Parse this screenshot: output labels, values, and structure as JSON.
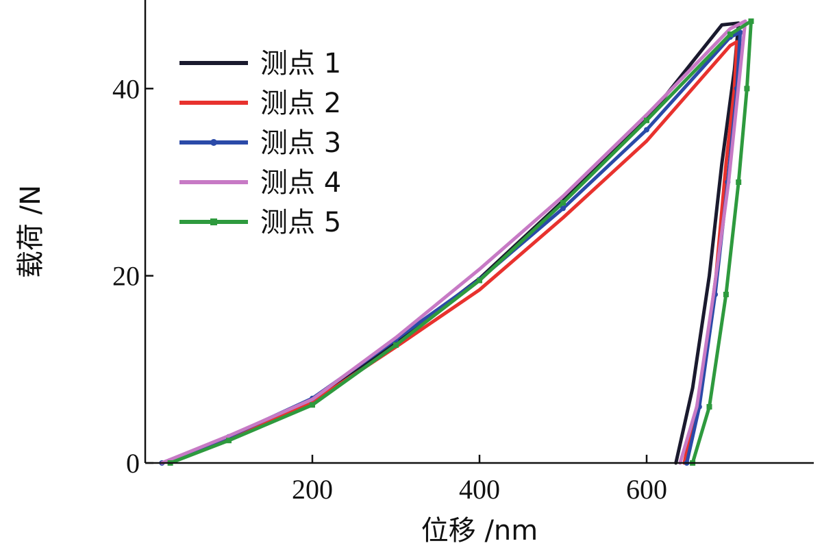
{
  "chart_data": {
    "type": "line",
    "title": "",
    "xlabel": "位移 /nm",
    "ylabel": "载荷 /N",
    "xlim": [
      0,
      800
    ],
    "ylim": [
      0,
      48
    ],
    "xticks": [
      200,
      400,
      600
    ],
    "yticks": [
      0,
      20,
      40
    ],
    "grid": false,
    "legend_position": "top-left",
    "series": [
      {
        "name": "测点 1",
        "color": "#1a1a2e",
        "marker": "none",
        "loading": [
          [
            20,
            0
          ],
          [
            100,
            2.6
          ],
          [
            200,
            6.6
          ],
          [
            300,
            12.9
          ],
          [
            400,
            19.7
          ],
          [
            500,
            28.0
          ],
          [
            600,
            36.7
          ],
          [
            690,
            46.8
          ],
          [
            710,
            47.0
          ]
        ],
        "unloading": [
          [
            710,
            47.0
          ],
          [
            705,
            42.0
          ],
          [
            690,
            32.0
          ],
          [
            675,
            20.0
          ],
          [
            655,
            8.0
          ],
          [
            635,
            0
          ]
        ]
      },
      {
        "name": "测点 2",
        "color": "#e8322e",
        "marker": "none",
        "loading": [
          [
            20,
            0
          ],
          [
            100,
            2.5
          ],
          [
            200,
            6.5
          ],
          [
            300,
            12.4
          ],
          [
            400,
            18.5
          ],
          [
            500,
            26.2
          ],
          [
            600,
            34.4
          ],
          [
            700,
            44.6
          ],
          [
            708,
            45.0
          ]
        ],
        "unloading": [
          [
            708,
            45.0
          ],
          [
            705,
            40.0
          ],
          [
            695,
            32.0
          ],
          [
            683,
            20.0
          ],
          [
            665,
            8.0
          ],
          [
            645,
            0
          ]
        ]
      },
      {
        "name": "测点 3",
        "color": "#2b4aa8",
        "marker": "dot",
        "loading": [
          [
            20,
            0
          ],
          [
            100,
            2.8
          ],
          [
            200,
            6.9
          ],
          [
            300,
            13.2
          ],
          [
            400,
            19.6
          ],
          [
            500,
            27.2
          ],
          [
            600,
            35.6
          ],
          [
            700,
            45.5
          ],
          [
            712,
            46.0
          ]
        ],
        "unloading": [
          [
            712,
            46.0
          ],
          [
            708,
            40.0
          ],
          [
            697,
            30.0
          ],
          [
            682,
            18.0
          ],
          [
            663,
            6.0
          ],
          [
            648,
            0
          ]
        ]
      },
      {
        "name": "测点 4",
        "color": "#c77ac5",
        "marker": "none",
        "loading": [
          [
            20,
            0
          ],
          [
            100,
            2.9
          ],
          [
            200,
            6.8
          ],
          [
            300,
            13.4
          ],
          [
            400,
            20.7
          ],
          [
            500,
            28.5
          ],
          [
            600,
            37.2
          ],
          [
            700,
            46.4
          ],
          [
            718,
            47.2
          ]
        ],
        "unloading": [
          [
            718,
            47.2
          ],
          [
            712,
            42.0
          ],
          [
            698,
            30.0
          ],
          [
            680,
            18.0
          ],
          [
            660,
            6.0
          ],
          [
            640,
            0
          ]
        ]
      },
      {
        "name": "测点 5",
        "color": "#2e9a3e",
        "marker": "square",
        "loading": [
          [
            30,
            0
          ],
          [
            100,
            2.4
          ],
          [
            200,
            6.2
          ],
          [
            300,
            12.6
          ],
          [
            400,
            19.5
          ],
          [
            500,
            27.8
          ],
          [
            600,
            36.6
          ],
          [
            700,
            45.8
          ],
          [
            725,
            47.2
          ]
        ],
        "unloading": [
          [
            725,
            47.2
          ],
          [
            720,
            40.0
          ],
          [
            710,
            30.0
          ],
          [
            695,
            18.0
          ],
          [
            675,
            6.0
          ],
          [
            655,
            0
          ]
        ]
      }
    ]
  }
}
